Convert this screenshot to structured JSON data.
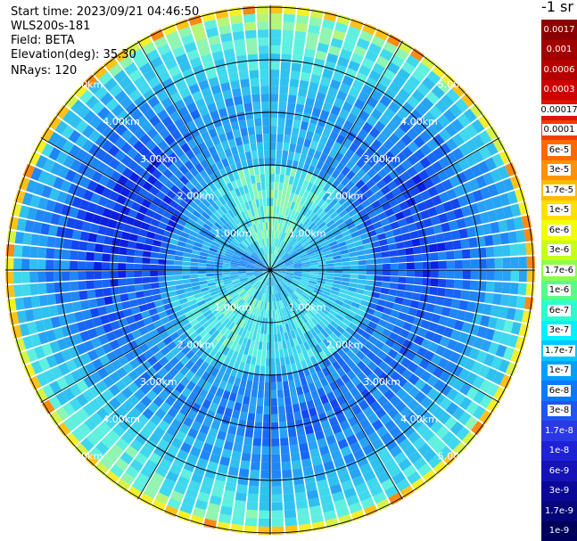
{
  "header": {
    "start_time": "Start time: 2023/09/21 04:46:50",
    "instrument": "WLS200s-181",
    "field": "Field: BETA",
    "elevation": "Elevation(deg): 35.30",
    "nrays": "NRays: 120"
  },
  "colorbar": {
    "unit_label": "-1 sr",
    "labels": [
      "0.0017",
      "0.001",
      "0.0006",
      "0.0003",
      "0.00017",
      "0.0001",
      "6e-5",
      "3e-5",
      "1.7e-5",
      "1e-5",
      "6e-6",
      "3e-6",
      "1.7e-6",
      "1e-6",
      "6e-7",
      "3e-7",
      "1.7e-7",
      "1e-7",
      "6e-8",
      "3e-8",
      "1.7e-8",
      "1e-8",
      "6e-9",
      "3e-9",
      "1.7e-9",
      "1e-9"
    ],
    "colors": [
      "#8b0000",
      "#a00000",
      "#b40000",
      "#cc0000",
      "#e01400",
      "#f23c00",
      "#ff6a00",
      "#ff9200",
      "#ffbb00",
      "#ffe000",
      "#f2ff00",
      "#c6ff1a",
      "#8cff4a",
      "#55ff8a",
      "#2affd0",
      "#00f0ff",
      "#00c8ff",
      "#00a0ff",
      "#0a78ff",
      "#1f55f0",
      "#2a38e6",
      "#1f22d4",
      "#1512b8",
      "#0b0898",
      "#06057a",
      "#00005a"
    ]
  },
  "chart_data": {
    "type": "ppi",
    "field": "BETA",
    "n_rays": 120,
    "elevation_deg": 35.3,
    "ring_labels": [
      "1.00km",
      "2.00km",
      "3.00km",
      "4.00km",
      "5.00km"
    ],
    "color_scale": "log"
  }
}
